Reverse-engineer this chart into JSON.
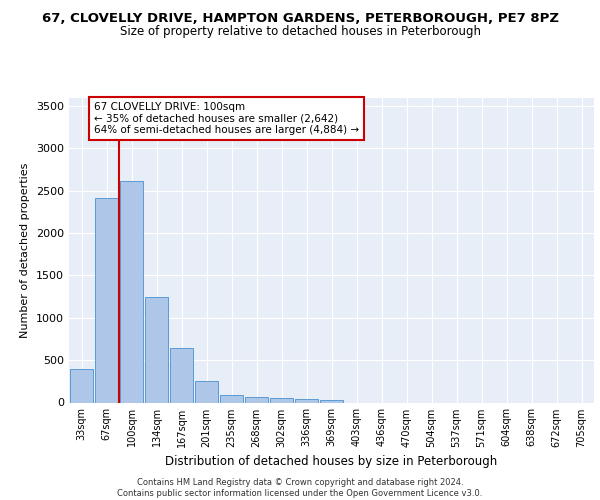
{
  "title_line1": "67, CLOVELLY DRIVE, HAMPTON GARDENS, PETERBOROUGH, PE7 8PZ",
  "title_line2": "Size of property relative to detached houses in Peterborough",
  "xlabel": "Distribution of detached houses by size in Peterborough",
  "ylabel": "Number of detached properties",
  "footer_line1": "Contains HM Land Registry data © Crown copyright and database right 2024.",
  "footer_line2": "Contains public sector information licensed under the Open Government Licence v3.0.",
  "annotation_title": "67 CLOVELLY DRIVE: 100sqm",
  "annotation_line2": "← 35% of detached houses are smaller (2,642)",
  "annotation_line3": "64% of semi-detached houses are larger (4,884) →",
  "bar_color": "#aec6e8",
  "bar_edge_color": "#5b9bd5",
  "vline_color": "#cc0000",
  "annotation_box_edge_color": "#cc0000",
  "annotation_box_face_color": "#ffffff",
  "background_color": "#e8eef7",
  "categories": [
    "33sqm",
    "67sqm",
    "100sqm",
    "134sqm",
    "167sqm",
    "201sqm",
    "235sqm",
    "268sqm",
    "302sqm",
    "336sqm",
    "369sqm",
    "403sqm",
    "436sqm",
    "470sqm",
    "504sqm",
    "537sqm",
    "571sqm",
    "604sqm",
    "638sqm",
    "672sqm",
    "705sqm"
  ],
  "values": [
    390,
    2410,
    2610,
    1240,
    640,
    255,
    90,
    60,
    55,
    40,
    30,
    0,
    0,
    0,
    0,
    0,
    0,
    0,
    0,
    0,
    0
  ],
  "ylim": [
    0,
    3600
  ],
  "yticks": [
    0,
    500,
    1000,
    1500,
    2000,
    2500,
    3000,
    3500
  ],
  "grid_color": "#ffffff",
  "title_fontsize": 9.5,
  "subtitle_fontsize": 8.5
}
